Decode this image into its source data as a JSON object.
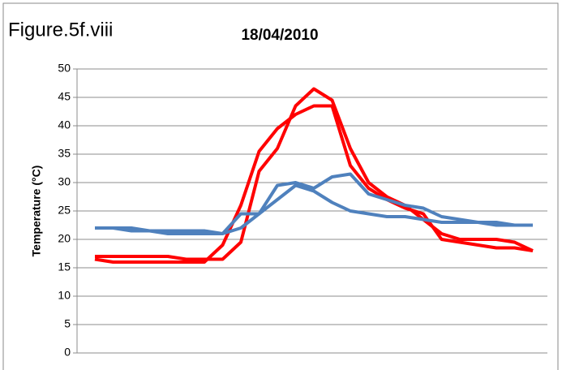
{
  "chart_data": {
    "type": "line",
    "title": "Figure.5f.viii",
    "subtitle": "18/04/2010",
    "y_label": "Temperature (°C)",
    "series": [
      {
        "color": "#ff0000",
        "values": [
          17,
          17,
          17,
          17,
          17,
          16.5,
          16.5,
          16.5,
          19.5,
          32,
          36,
          43.5,
          46.5,
          44.5,
          36,
          30,
          27.5,
          26,
          23.5,
          21,
          20,
          20,
          20,
          19.5,
          18
        ]
      },
      {
        "color": "#ff0000",
        "values": [
          16.5,
          16,
          16,
          16,
          16,
          16,
          16,
          19,
          26,
          35.5,
          39.5,
          42,
          43.5,
          43.5,
          33,
          29,
          27,
          25.5,
          24.5,
          20,
          19.5,
          19,
          18.5,
          18.5,
          18
        ]
      },
      {
        "color": "#4f81bd",
        "values": [
          22,
          22,
          22,
          21.5,
          21.5,
          21.5,
          21.5,
          21,
          22,
          24.5,
          29.5,
          30,
          29,
          31,
          31.5,
          28,
          27,
          26,
          25.5,
          24,
          23.5,
          23,
          23,
          22.5,
          22.5
        ]
      },
      {
        "color": "#4f81bd",
        "values": [
          22,
          22,
          21.5,
          21.5,
          21,
          21,
          21,
          21,
          24.5,
          24.5,
          27,
          29.5,
          28.5,
          26.5,
          25,
          24.5,
          24,
          24,
          23.5,
          23,
          23,
          23,
          22.5,
          22.5,
          22.5
        ]
      }
    ],
    "ylim": [
      0,
      50
    ],
    "yticks": [
      0,
      5,
      10,
      15,
      20,
      25,
      30,
      35,
      40,
      45,
      50
    ],
    "grid": true
  }
}
